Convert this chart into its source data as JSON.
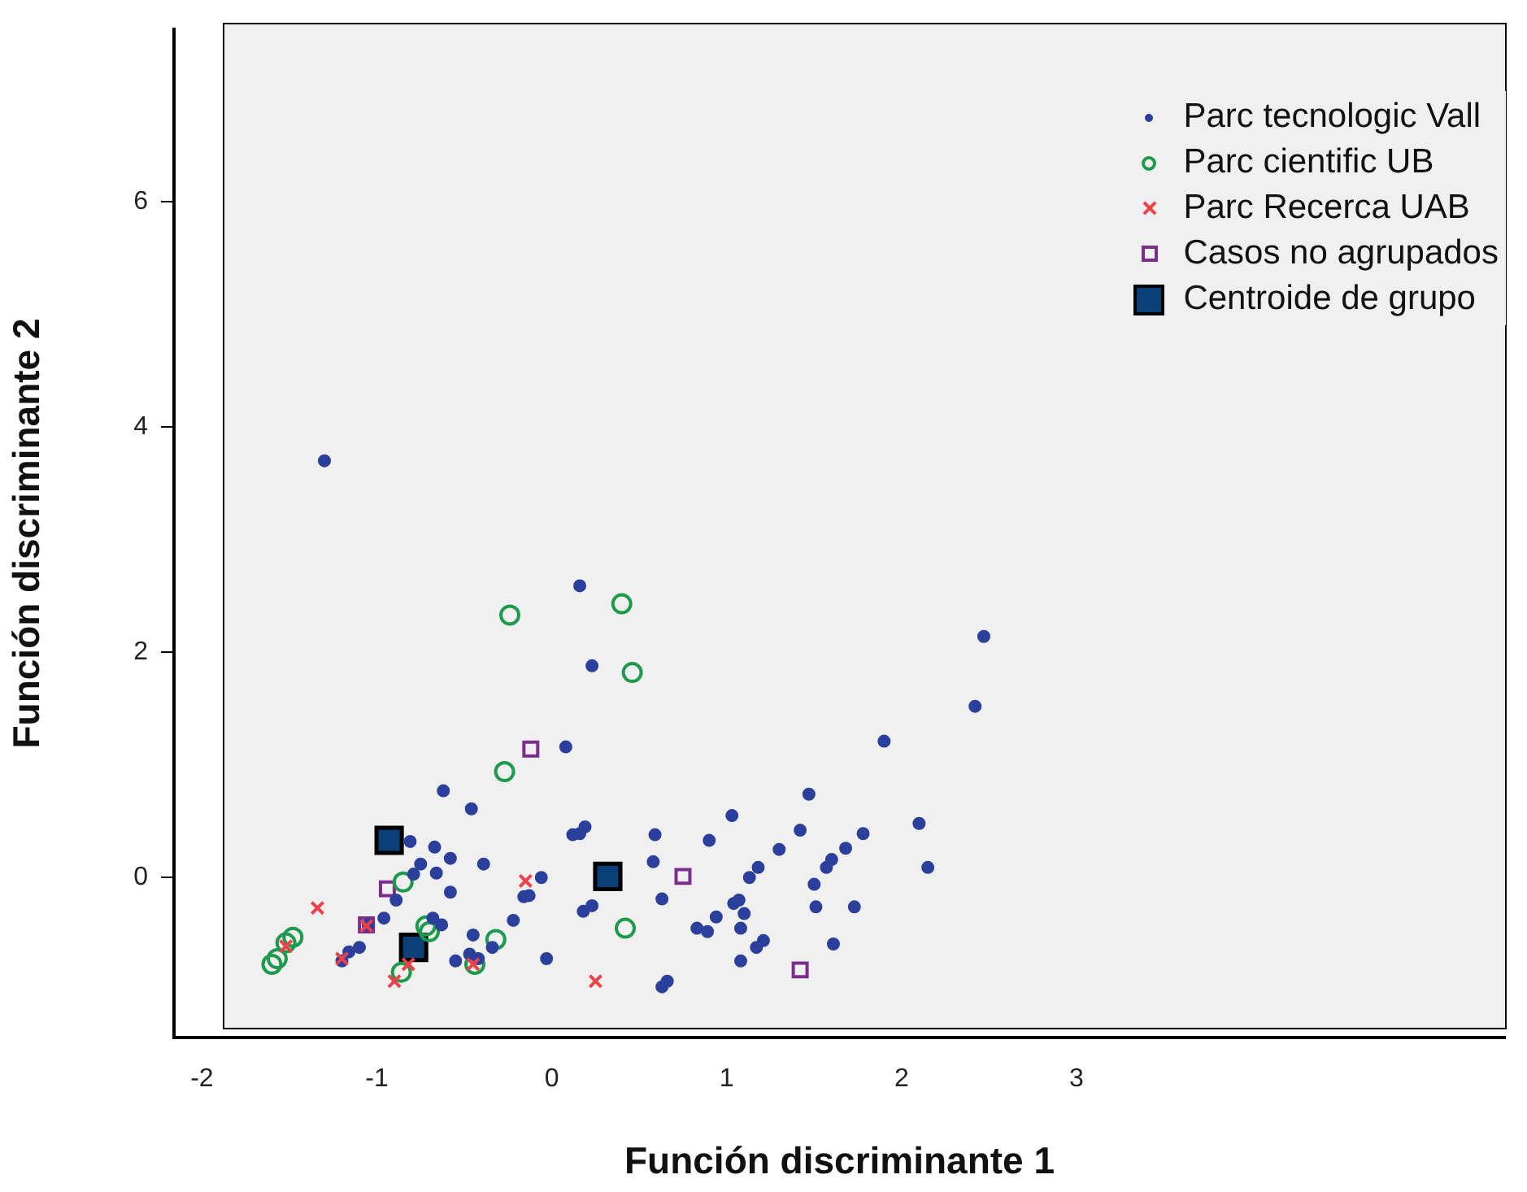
{
  "chart_data": {
    "type": "scatter",
    "xlabel": "Función discriminante 1",
    "ylabel": "Función discriminante 2",
    "xlim": [
      -2.16,
      5.45
    ],
    "ylim": [
      -1.42,
      7.53
    ],
    "xticks": [
      -2,
      -1,
      0,
      1,
      2,
      3
    ],
    "yticks": [
      0,
      2,
      4,
      6
    ],
    "grid": false,
    "legend": "top right",
    "series": [
      {
        "name": "Parc tecnologic Vall",
        "color": "#2b3f9c",
        "marker": "circle",
        "x": [
          -1.3,
          0.16,
          0.23,
          0.08,
          2.47,
          2.42,
          1.9,
          2.1,
          2.15,
          1.78,
          1.68,
          1.73,
          1.61,
          1.47,
          1.03,
          1.42,
          1.3,
          1.6,
          1.57,
          1.18,
          1.13,
          1.5,
          1.51,
          1.07,
          1.04,
          1.1,
          0.94,
          0.83,
          0.89,
          1.08,
          1.21,
          1.17,
          1.08,
          0.9,
          0.59,
          0.58,
          0.63,
          0.66,
          0.63,
          0.19,
          0.16,
          0.12,
          0.23,
          0.18,
          -0.06,
          -0.13,
          -0.03,
          -0.62,
          -0.46,
          -0.81,
          -0.67,
          -0.58,
          -0.75,
          -0.39,
          -0.66,
          -0.79,
          -0.58,
          -0.89,
          -0.16,
          -0.22,
          -0.96,
          -1.05,
          -0.63,
          -0.68,
          -0.45,
          -1.1,
          -1.16,
          -0.55,
          -0.47,
          -0.42,
          -0.34,
          -1.2
        ],
        "values": [
          3.7,
          2.59,
          1.88,
          1.16,
          2.14,
          1.52,
          1.21,
          0.48,
          0.09,
          0.39,
          0.26,
          -0.26,
          -0.59,
          0.74,
          0.55,
          0.42,
          0.25,
          0.16,
          0.09,
          0.09,
          0.0,
          -0.06,
          -0.26,
          -0.2,
          -0.23,
          -0.32,
          -0.35,
          -0.45,
          -0.48,
          -0.45,
          -0.56,
          -0.62,
          -0.74,
          0.33,
          0.38,
          0.14,
          -0.19,
          -0.92,
          -0.97,
          0.45,
          0.39,
          0.38,
          -0.25,
          -0.3,
          0.0,
          -0.16,
          -0.72,
          0.77,
          0.61,
          0.32,
          0.27,
          0.17,
          0.12,
          0.12,
          0.04,
          0.03,
          -0.13,
          -0.2,
          -0.17,
          -0.38,
          -0.36,
          -0.42,
          -0.42,
          -0.36,
          -0.51,
          -0.62,
          -0.66,
          -0.74,
          -0.68,
          -0.72,
          -0.62,
          -0.74
        ]
      },
      {
        "name": "Parc cientific UB",
        "color": "#1e9a4c",
        "marker": "circle-open",
        "x": [
          -0.24,
          0.4,
          0.46,
          -0.27,
          -0.85,
          0.42,
          -0.32,
          -0.44,
          -0.86,
          -0.7,
          -0.72,
          -1.48,
          -1.52,
          -1.57,
          -1.6
        ],
        "values": [
          2.33,
          2.43,
          1.82,
          0.94,
          -0.04,
          -0.45,
          -0.55,
          -0.77,
          -0.84,
          -0.48,
          -0.43,
          -0.53,
          -0.58,
          -0.72,
          -0.77
        ]
      },
      {
        "name": "Parc Recerca UAB",
        "color": "#f0404a",
        "marker": "cross",
        "x": [
          -1.34,
          -1.52,
          -1.2,
          -0.9,
          -0.82,
          -1.06,
          -0.15,
          -0.45,
          0.25
        ],
        "values": [
          -0.27,
          -0.61,
          -0.72,
          -0.92,
          -0.77,
          -0.43,
          -0.03,
          -0.77,
          -0.92
        ]
      },
      {
        "name": "Casos no agrupados",
        "color": "#7b2d8e",
        "marker": "square-open",
        "x": [
          -0.12,
          -0.94,
          -1.06,
          0.75,
          1.42
        ],
        "values": [
          1.14,
          -0.1,
          -0.42,
          0.01,
          -0.82
        ]
      },
      {
        "name": "Centroide de grupo",
        "color": "#0b3f78",
        "marker": "square",
        "x": [
          -0.93,
          -0.79,
          0.32
        ],
        "values": [
          0.33,
          -0.62,
          0.01
        ]
      }
    ]
  }
}
